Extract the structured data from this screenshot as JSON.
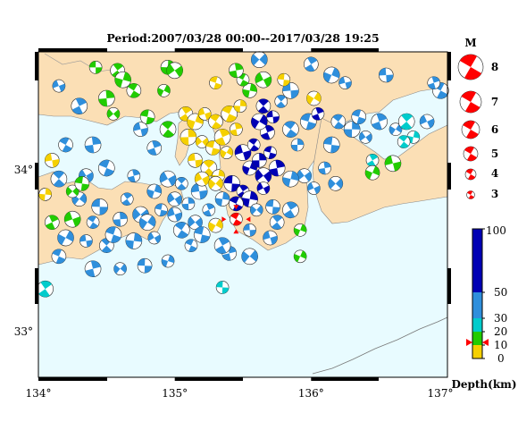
{
  "title": "Period:2007/03/28 00:00--2017/03/28 19:25",
  "axes": {
    "lon_ticks": [
      "134°",
      "135°",
      "136°",
      "137°"
    ],
    "lat_ticks": [
      "34°",
      "33°"
    ]
  },
  "map": {
    "lon_range": [
      134,
      137
    ],
    "lat_range": [
      32.7,
      34.8
    ],
    "sea_color": "#e8fbff",
    "land_color": "#fbdfb5",
    "coast_color": "#888888"
  },
  "magnitude_legend": {
    "title": "M",
    "labels": [
      "8",
      "7",
      "6",
      "5",
      "4",
      "3"
    ],
    "symbol_color": "#ff0000"
  },
  "depth_scale": {
    "title": "Depth(km)",
    "labels": [
      "100",
      "50",
      "30",
      "20",
      "10",
      "0"
    ],
    "bands": [
      {
        "from": 0,
        "to": 10,
        "color": "#f5d000"
      },
      {
        "from": 10,
        "to": 20,
        "color": "#22cc00"
      },
      {
        "from": 20,
        "to": 30,
        "color": "#00cccc"
      },
      {
        "from": 30,
        "to": 50,
        "color": "#2f8fdc"
      },
      {
        "from": 50,
        "to": 100,
        "color": "#0000b4"
      }
    ],
    "marker_depth": 12
  },
  "featured_event": {
    "lon": 135.45,
    "lat": 33.72,
    "color": "#ff0000",
    "label_icon": "target-marker-icon"
  },
  "colors": {
    "shallow": "#f5d000",
    "crustal": "#22cc00",
    "mid": "#00cccc",
    "intermediate": "#2f8fdc",
    "deep": "#0000b4"
  },
  "mechanisms": [
    {
      "lon": 134.42,
      "lat": 34.7,
      "c": "crustal"
    },
    {
      "lon": 134.58,
      "lat": 34.68,
      "c": "crustal"
    },
    {
      "lon": 134.62,
      "lat": 34.62,
      "c": "crustal"
    },
    {
      "lon": 134.15,
      "lat": 34.58,
      "c": "intermediate"
    },
    {
      "lon": 134.7,
      "lat": 34.55,
      "c": "crustal"
    },
    {
      "lon": 134.5,
      "lat": 34.5,
      "c": "crustal"
    },
    {
      "lon": 134.55,
      "lat": 34.4,
      "c": "crustal"
    },
    {
      "lon": 134.8,
      "lat": 34.38,
      "c": "crustal"
    },
    {
      "lon": 134.3,
      "lat": 34.45,
      "c": "intermediate"
    },
    {
      "lon": 134.92,
      "lat": 34.55,
      "c": "crustal"
    },
    {
      "lon": 134.1,
      "lat": 34.1,
      "c": "shallow"
    },
    {
      "lon": 134.15,
      "lat": 33.98,
      "c": "intermediate"
    },
    {
      "lon": 134.05,
      "lat": 33.88,
      "c": "shallow"
    },
    {
      "lon": 134.35,
      "lat": 34.0,
      "c": "intermediate"
    },
    {
      "lon": 134.5,
      "lat": 34.05,
      "c": "intermediate"
    },
    {
      "lon": 134.7,
      "lat": 34.0,
      "c": "intermediate"
    },
    {
      "lon": 134.3,
      "lat": 33.85,
      "c": "intermediate"
    },
    {
      "lon": 134.45,
      "lat": 33.8,
      "c": "intermediate"
    },
    {
      "lon": 134.65,
      "lat": 33.85,
      "c": "intermediate"
    },
    {
      "lon": 134.85,
      "lat": 33.9,
      "c": "intermediate"
    },
    {
      "lon": 134.25,
      "lat": 33.72,
      "c": "crustal"
    },
    {
      "lon": 134.4,
      "lat": 33.7,
      "c": "intermediate"
    },
    {
      "lon": 134.6,
      "lat": 33.72,
      "c": "intermediate"
    },
    {
      "lon": 134.75,
      "lat": 33.75,
      "c": "intermediate"
    },
    {
      "lon": 134.9,
      "lat": 33.78,
      "c": "intermediate"
    },
    {
      "lon": 134.1,
      "lat": 33.7,
      "c": "crustal"
    },
    {
      "lon": 134.2,
      "lat": 33.6,
      "c": "intermediate"
    },
    {
      "lon": 134.35,
      "lat": 33.58,
      "c": "intermediate"
    },
    {
      "lon": 134.5,
      "lat": 33.55,
      "c": "intermediate"
    },
    {
      "lon": 134.7,
      "lat": 33.58,
      "c": "intermediate"
    },
    {
      "lon": 134.85,
      "lat": 33.6,
      "c": "intermediate"
    },
    {
      "lon": 134.15,
      "lat": 33.48,
      "c": "intermediate"
    },
    {
      "lon": 134.4,
      "lat": 33.4,
      "c": "intermediate"
    },
    {
      "lon": 134.6,
      "lat": 33.4,
      "c": "intermediate"
    },
    {
      "lon": 134.78,
      "lat": 33.42,
      "c": "intermediate"
    },
    {
      "lon": 134.05,
      "lat": 33.27,
      "c": "mid"
    },
    {
      "lon": 134.95,
      "lat": 33.45,
      "c": "intermediate"
    },
    {
      "lon": 135.0,
      "lat": 33.75,
      "c": "intermediate"
    },
    {
      "lon": 135.05,
      "lat": 33.65,
      "c": "intermediate"
    },
    {
      "lon": 135.1,
      "lat": 33.82,
      "c": "intermediate"
    },
    {
      "lon": 135.15,
      "lat": 33.7,
      "c": "intermediate"
    },
    {
      "lon": 135.2,
      "lat": 33.62,
      "c": "intermediate"
    },
    {
      "lon": 135.25,
      "lat": 33.78,
      "c": "intermediate"
    },
    {
      "lon": 135.3,
      "lat": 33.68,
      "c": "shallow"
    },
    {
      "lon": 135.18,
      "lat": 33.9,
      "c": "intermediate"
    },
    {
      "lon": 135.05,
      "lat": 33.95,
      "c": "intermediate"
    },
    {
      "lon": 135.35,
      "lat": 33.85,
      "c": "intermediate"
    },
    {
      "lon": 134.95,
      "lat": 33.98,
      "c": "intermediate"
    },
    {
      "lon": 135.12,
      "lat": 33.55,
      "c": "intermediate"
    },
    {
      "lon": 135.4,
      "lat": 33.5,
      "c": "intermediate"
    },
    {
      "lon": 135.55,
      "lat": 33.48,
      "c": "intermediate"
    },
    {
      "lon": 135.35,
      "lat": 33.28,
      "c": "mid"
    },
    {
      "lon": 135.08,
      "lat": 34.4,
      "c": "shallow"
    },
    {
      "lon": 135.15,
      "lat": 34.35,
      "c": "shallow"
    },
    {
      "lon": 135.22,
      "lat": 34.4,
      "c": "shallow"
    },
    {
      "lon": 135.3,
      "lat": 34.35,
      "c": "shallow"
    },
    {
      "lon": 135.1,
      "lat": 34.25,
      "c": "shallow"
    },
    {
      "lon": 135.2,
      "lat": 34.22,
      "c": "shallow"
    },
    {
      "lon": 135.28,
      "lat": 34.18,
      "c": "shallow"
    },
    {
      "lon": 135.35,
      "lat": 34.25,
      "c": "shallow"
    },
    {
      "lon": 135.38,
      "lat": 34.15,
      "c": "shallow"
    },
    {
      "lon": 135.15,
      "lat": 34.1,
      "c": "shallow"
    },
    {
      "lon": 135.25,
      "lat": 34.05,
      "c": "shallow"
    },
    {
      "lon": 135.32,
      "lat": 34.0,
      "c": "shallow"
    },
    {
      "lon": 135.2,
      "lat": 33.98,
      "c": "shallow"
    },
    {
      "lon": 135.4,
      "lat": 34.4,
      "c": "shallow"
    },
    {
      "lon": 135.45,
      "lat": 34.3,
      "c": "shallow"
    },
    {
      "lon": 135.3,
      "lat": 33.95,
      "c": "shallow"
    },
    {
      "lon": 135.42,
      "lat": 33.95,
      "c": "deep"
    },
    {
      "lon": 135.5,
      "lat": 33.9,
      "c": "deep"
    },
    {
      "lon": 135.55,
      "lat": 34.05,
      "c": "deep"
    },
    {
      "lon": 135.5,
      "lat": 34.15,
      "c": "deep"
    },
    {
      "lon": 135.58,
      "lat": 34.2,
      "c": "deep"
    },
    {
      "lon": 135.62,
      "lat": 34.1,
      "c": "deep"
    },
    {
      "lon": 135.65,
      "lat": 34.0,
      "c": "deep"
    },
    {
      "lon": 135.7,
      "lat": 34.15,
      "c": "deep"
    },
    {
      "lon": 135.68,
      "lat": 34.28,
      "c": "deep"
    },
    {
      "lon": 135.62,
      "lat": 34.35,
      "c": "deep"
    },
    {
      "lon": 135.72,
      "lat": 34.38,
      "c": "deep"
    },
    {
      "lon": 135.65,
      "lat": 34.45,
      "c": "deep"
    },
    {
      "lon": 135.55,
      "lat": 33.85,
      "c": "deep"
    },
    {
      "lon": 135.65,
      "lat": 33.92,
      "c": "deep"
    },
    {
      "lon": 135.45,
      "lat": 33.82,
      "c": "deep"
    },
    {
      "lon": 135.75,
      "lat": 34.05,
      "c": "deep"
    },
    {
      "lon": 135.6,
      "lat": 33.78,
      "c": "intermediate"
    },
    {
      "lon": 135.72,
      "lat": 33.8,
      "c": "intermediate"
    },
    {
      "lon": 135.85,
      "lat": 33.78,
      "c": "intermediate"
    },
    {
      "lon": 135.92,
      "lat": 33.65,
      "c": "crustal"
    },
    {
      "lon": 135.7,
      "lat": 33.6,
      "c": "intermediate"
    },
    {
      "lon": 135.85,
      "lat": 34.3,
      "c": "intermediate"
    },
    {
      "lon": 135.9,
      "lat": 34.2,
      "c": "intermediate"
    },
    {
      "lon": 135.95,
      "lat": 34.0,
      "c": "intermediate"
    },
    {
      "lon": 135.98,
      "lat": 34.35,
      "c": "intermediate"
    },
    {
      "lon": 136.05,
      "lat": 34.4,
      "c": "deep"
    },
    {
      "lon": 136.02,
      "lat": 34.5,
      "c": "shallow"
    },
    {
      "lon": 135.85,
      "lat": 34.55,
      "c": "intermediate"
    },
    {
      "lon": 135.78,
      "lat": 34.48,
      "c": "intermediate"
    },
    {
      "lon": 135.55,
      "lat": 34.55,
      "c": "crustal"
    },
    {
      "lon": 135.65,
      "lat": 34.62,
      "c": "crustal"
    },
    {
      "lon": 135.5,
      "lat": 34.62,
      "c": "crustal"
    },
    {
      "lon": 135.45,
      "lat": 34.68,
      "c": "crustal"
    },
    {
      "lon": 135.62,
      "lat": 34.75,
      "c": "intermediate"
    },
    {
      "lon": 135.8,
      "lat": 34.62,
      "c": "shallow"
    },
    {
      "lon": 136.0,
      "lat": 34.72,
      "c": "intermediate"
    },
    {
      "lon": 136.15,
      "lat": 34.65,
      "c": "intermediate"
    },
    {
      "lon": 136.25,
      "lat": 34.6,
      "c": "intermediate"
    },
    {
      "lon": 136.2,
      "lat": 34.35,
      "c": "intermediate"
    },
    {
      "lon": 136.3,
      "lat": 34.3,
      "c": "intermediate"
    },
    {
      "lon": 136.4,
      "lat": 34.25,
      "c": "intermediate"
    },
    {
      "lon": 136.35,
      "lat": 34.38,
      "c": "intermediate"
    },
    {
      "lon": 136.5,
      "lat": 34.35,
      "c": "intermediate"
    },
    {
      "lon": 136.62,
      "lat": 34.3,
      "c": "intermediate"
    },
    {
      "lon": 136.55,
      "lat": 34.65,
      "c": "intermediate"
    },
    {
      "lon": 136.7,
      "lat": 34.35,
      "c": "mid"
    },
    {
      "lon": 136.75,
      "lat": 34.25,
      "c": "mid"
    },
    {
      "lon": 136.85,
      "lat": 34.35,
      "c": "intermediate"
    },
    {
      "lon": 136.95,
      "lat": 34.55,
      "c": "intermediate"
    },
    {
      "lon": 136.1,
      "lat": 34.05,
      "c": "intermediate"
    },
    {
      "lon": 136.18,
      "lat": 33.95,
      "c": "intermediate"
    },
    {
      "lon": 136.15,
      "lat": 34.2,
      "c": "intermediate"
    },
    {
      "lon": 136.45,
      "lat": 34.1,
      "c": "mid"
    },
    {
      "lon": 136.45,
      "lat": 34.02,
      "c": "crustal"
    },
    {
      "lon": 136.6,
      "lat": 34.08,
      "c": "crustal"
    },
    {
      "lon": 136.68,
      "lat": 34.22,
      "c": "mid"
    },
    {
      "lon": 134.95,
      "lat": 34.7,
      "c": "crustal"
    },
    {
      "lon": 135.0,
      "lat": 34.68,
      "c": "crustal"
    },
    {
      "lon": 135.3,
      "lat": 34.6,
      "c": "shallow"
    },
    {
      "lon": 134.85,
      "lat": 34.18,
      "c": "intermediate"
    },
    {
      "lon": 134.8,
      "lat": 33.7,
      "c": "intermediate"
    },
    {
      "lon": 135.55,
      "lat": 33.65,
      "c": "intermediate"
    },
    {
      "lon": 135.75,
      "lat": 33.7,
      "c": "intermediate"
    },
    {
      "lon": 135.85,
      "lat": 33.98,
      "c": "intermediate"
    },
    {
      "lon": 136.02,
      "lat": 33.92,
      "c": "intermediate"
    },
    {
      "lon": 134.2,
      "lat": 34.2,
      "c": "intermediate"
    },
    {
      "lon": 134.4,
      "lat": 34.2,
      "c": "intermediate"
    },
    {
      "lon": 134.25,
      "lat": 33.9,
      "c": "crustal"
    },
    {
      "lon": 134.32,
      "lat": 33.95,
      "c": "crustal"
    },
    {
      "lon": 135.35,
      "lat": 33.55,
      "c": "intermediate"
    },
    {
      "lon": 135.92,
      "lat": 33.48,
      "c": "crustal"
    },
    {
      "lon": 134.75,
      "lat": 34.3,
      "c": "intermediate"
    },
    {
      "lon": 134.95,
      "lat": 34.3,
      "c": "crustal"
    },
    {
      "lon": 135.48,
      "lat": 34.45,
      "c": "shallow"
    },
    {
      "lon": 135.0,
      "lat": 33.85,
      "c": "intermediate"
    },
    {
      "lon": 134.55,
      "lat": 33.62,
      "c": "intermediate"
    },
    {
      "lon": 136.9,
      "lat": 34.6,
      "c": "intermediate"
    }
  ]
}
